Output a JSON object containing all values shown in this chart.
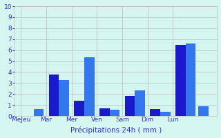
{
  "groups": [
    {
      "label": "Me​Jeu",
      "bar1": 0.0,
      "bar2": 0.6
    },
    {
      "label": "Mar",
      "bar1": 3.8,
      "bar2": 3.3
    },
    {
      "label": "Mer",
      "bar1": 1.4,
      "bar2": 5.35
    },
    {
      "label": "Ven",
      "bar1": 0.7,
      "bar2": 0.55
    },
    {
      "label": "Sam",
      "bar1": 1.85,
      "bar2": 2.35
    },
    {
      "label": "Dim",
      "bar1": 0.65,
      "bar2": 0.35
    },
    {
      "label": "Lun",
      "bar1": 6.5,
      "bar2": 6.6
    }
  ],
  "extra_bar": 0.9,
  "color1": "#1a1acc",
  "color2": "#3377ee",
  "background_color": "#d4f5f0",
  "grid_color": "#bbbbbb",
  "xlabel": "Précipitations 24h ( mm )",
  "xlabel_color": "#3333bb",
  "ylim": [
    0,
    10
  ],
  "yticks": [
    0,
    1,
    2,
    3,
    4,
    5,
    6,
    7,
    8,
    9,
    10
  ],
  "bar_width": 0.8,
  "group_width": 2.0,
  "figsize": [
    3.2,
    2.0
  ],
  "dpi": 100
}
